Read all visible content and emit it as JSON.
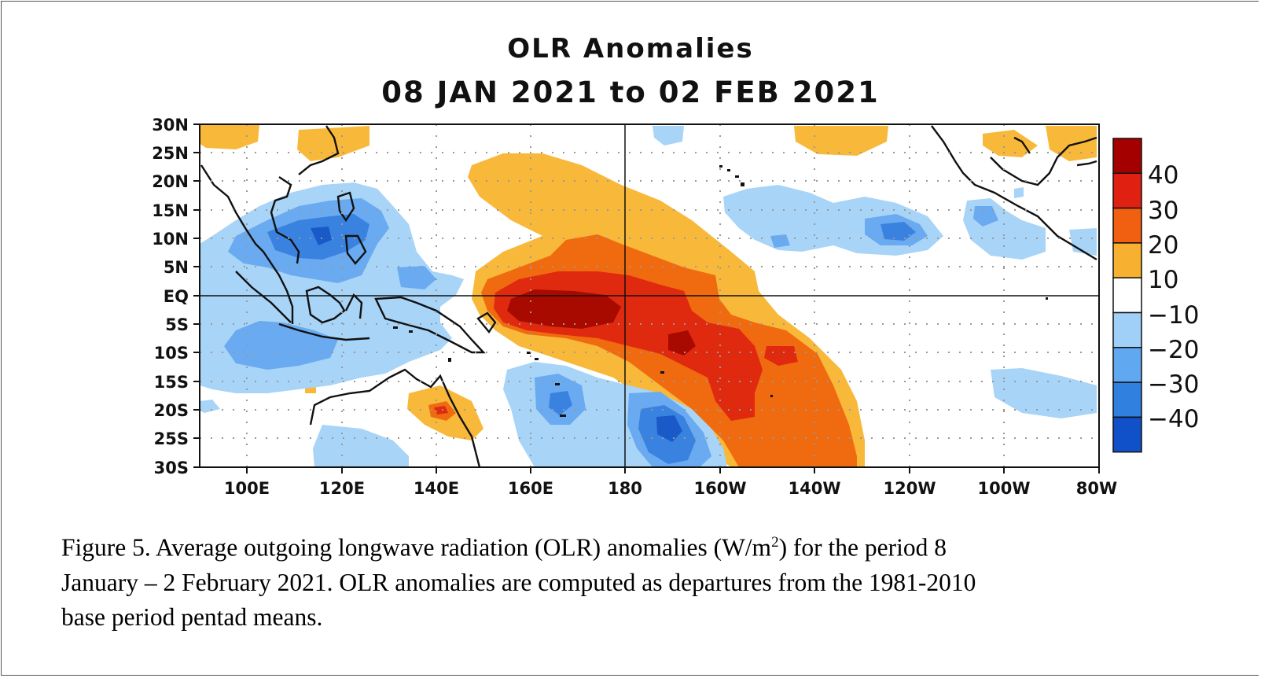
{
  "map": {
    "title": "OLR Anomalies",
    "subtitle": "08 JAN 2021 to 02 FEB 2021",
    "lat_labels": [
      "30N",
      "25N",
      "20N",
      "15N",
      "10N",
      "5N",
      "EQ",
      "5S",
      "10S",
      "15S",
      "20S",
      "25S",
      "30S"
    ],
    "lon_labels": [
      "100E",
      "120E",
      "140E",
      "160E",
      "180",
      "160W",
      "140W",
      "120W",
      "100W",
      "80W"
    ],
    "lon_range": [
      90,
      280
    ],
    "lat_range": [
      -30,
      30
    ],
    "colorbar": {
      "labels": [
        "40",
        "30",
        "20",
        "10",
        "−10",
        "−20",
        "−30",
        "−40"
      ],
      "colors": [
        "#a50000",
        "#e02010",
        "#f06010",
        "#f8b030",
        "#ffffff",
        "#a0d0f8",
        "#60a8f0",
        "#3080e0",
        "#1050c8"
      ]
    },
    "colors": {
      "pos10": "#f8b83a",
      "pos20": "#f06a10",
      "pos30": "#e02a10",
      "pos40": "#a80a00",
      "neg10": "#a8d4f8",
      "neg20": "#6aaaf0",
      "neg30": "#3a82e0",
      "neg40": "#1a5ac8"
    }
  },
  "caption": {
    "line1_a": "Figure 5. Average outgoing longwave radiation (OLR) anomalies (W/m",
    "line1_sup": "2",
    "line1_b": ") for the period 8",
    "line2": "January – 2 February 2021. OLR anomalies are computed as departures from the 1981-2010",
    "line3": "base period pentad means."
  }
}
